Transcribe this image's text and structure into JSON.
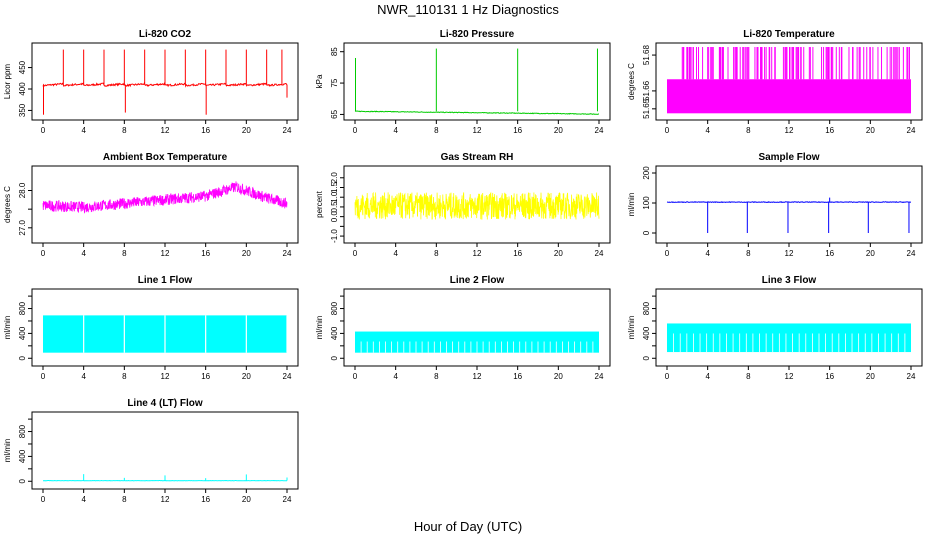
{
  "figure": {
    "title": "NWR_110131  1 Hz Diagnostics",
    "xlabel": "Hour of Day (UTC)"
  },
  "chart_data": [
    {
      "type": "line",
      "title": "Li-820 CO2",
      "ylabel": "Licor ppm",
      "color": "#ff0000",
      "xlim": [
        0,
        24
      ],
      "ylim": [
        337,
        498
      ],
      "yticks": [
        350,
        400,
        450
      ],
      "xticks": [
        0,
        4,
        8,
        12,
        16,
        20,
        24
      ],
      "baseline": 410,
      "noise": 4,
      "sawtooth": true,
      "spikes": [
        {
          "x": 2,
          "y": 492
        },
        {
          "x": 4,
          "y": 492
        },
        {
          "x": 6,
          "y": 492
        },
        {
          "x": 8,
          "y": 492
        },
        {
          "x": 10,
          "y": 492
        },
        {
          "x": 12,
          "y": 492
        },
        {
          "x": 14,
          "y": 492
        },
        {
          "x": 16,
          "y": 492
        },
        {
          "x": 18,
          "y": 492
        },
        {
          "x": 20,
          "y": 492
        },
        {
          "x": 22,
          "y": 492
        },
        {
          "x": 23.5,
          "y": 492
        }
      ],
      "dips": [
        {
          "x": 0.05,
          "y": 340
        },
        {
          "x": 8.1,
          "y": 345
        },
        {
          "x": 16.05,
          "y": 340
        },
        {
          "x": 24,
          "y": 380
        }
      ]
    },
    {
      "type": "line",
      "title": "Li-820 Pressure",
      "ylabel": "kPa",
      "color": "#00cc00",
      "xlim": [
        0,
        24
      ],
      "ylim": [
        64.5,
        86.5
      ],
      "yticks": [
        65,
        75,
        85
      ],
      "xticks": [
        0,
        4,
        8,
        12,
        16,
        20,
        24
      ],
      "baseline": 66,
      "noise": 0.2,
      "drift": -0.9,
      "spikes": [
        {
          "x": 0.05,
          "y": 83
        },
        {
          "x": 8,
          "y": 86
        },
        {
          "x": 16,
          "y": 86
        },
        {
          "x": 23.85,
          "y": 86
        }
      ]
    },
    {
      "type": "band",
      "title": "Li-820 Temperature",
      "ylabel": "degrees C",
      "color": "#ff00ff",
      "xlim": [
        0,
        24
      ],
      "ylim": [
        51.646,
        51.6845
      ],
      "yticks": [
        51.65,
        51.66,
        51.68
      ],
      "ytick_labels": [
        "51.65",
        "51.66",
        "51.68"
      ],
      "xticks": [
        0,
        4,
        8,
        12,
        16,
        20,
        24
      ],
      "band_low": 51.6475,
      "band_high": 51.6665,
      "spike_top": 51.6845,
      "spike_density": 0.25
    },
    {
      "type": "noise",
      "title": "Ambient Box Temperature",
      "ylabel": "degrees C",
      "color": "#ff00ff",
      "xlim": [
        0,
        24
      ],
      "ylim": [
        26.7,
        28.55
      ],
      "yticks": [
        27.0,
        27.5,
        28.0
      ],
      "ytick_labels": [
        "27.0",
        "",
        "28.0"
      ],
      "xticks": [
        0,
        4,
        8,
        12,
        16,
        20,
        24
      ],
      "trend": [
        [
          0,
          27.6
        ],
        [
          4,
          27.55
        ],
        [
          8,
          27.65
        ],
        [
          12,
          27.75
        ],
        [
          16,
          27.85
        ],
        [
          19,
          28.1
        ],
        [
          22,
          27.8
        ],
        [
          24,
          27.65
        ]
      ],
      "noise": 0.3
    },
    {
      "type": "noise",
      "title": "Gas Stream RH",
      "ylabel": "percent",
      "color": "#ffff00",
      "xlim": [
        0,
        24
      ],
      "ylim": [
        -1.15,
        2.4
      ],
      "yticks": [
        -1.0,
        -0.5,
        0.0,
        0.5,
        1.0,
        1.5,
        2.0
      ],
      "ytick_labels": [
        "-1.0",
        "0.0",
        "0.5",
        "1.0",
        "1.5",
        "2.0"
      ],
      "ytick_label_values": [
        -1.0,
        0.0,
        0.5,
        1.0,
        1.5,
        2.0
      ],
      "xticks": [
        0,
        4,
        8,
        12,
        16,
        20,
        24
      ],
      "trend": [
        [
          0,
          0.55
        ],
        [
          24,
          0.55
        ]
      ],
      "noise": 1.4
    },
    {
      "type": "line",
      "title": "Sample Flow",
      "ylabel": "ml/min",
      "color": "#0000ff",
      "xlim": [
        0,
        24
      ],
      "ylim": [
        -20,
        210
      ],
      "yticks": [
        0,
        100,
        200
      ],
      "xticks": [
        0,
        4,
        8,
        12,
        16,
        20,
        24
      ],
      "baseline": 103,
      "noise": 2,
      "dips": [
        {
          "x": 4,
          "y": 0
        },
        {
          "x": 7.9,
          "y": 0
        },
        {
          "x": 11.9,
          "y": 0
        },
        {
          "x": 15.9,
          "y": 0
        },
        {
          "x": 19.8,
          "y": 0
        },
        {
          "x": 23.8,
          "y": 0
        }
      ],
      "spikes": [
        {
          "x": 16,
          "y": 118
        }
      ]
    },
    {
      "type": "band",
      "title": "Line 1 Flow",
      "ylabel": "ml/min",
      "color": "#00ffff",
      "xlim": [
        0,
        24
      ],
      "ylim": [
        -60,
        1050
      ],
      "yticks": [
        0,
        200,
        400,
        600,
        800,
        1000
      ],
      "ytick_labels": [
        "0",
        "400",
        "800"
      ],
      "ytick_label_values": [
        0,
        400,
        800
      ],
      "xticks": [
        0,
        4,
        8,
        12,
        16,
        20,
        24
      ],
      "band_low": 90,
      "band_high": 690,
      "gaps": [
        4,
        8,
        12,
        16,
        20,
        24
      ]
    },
    {
      "type": "band",
      "title": "Line 2 Flow",
      "ylabel": "ml/min",
      "color": "#00ffff",
      "xlim": [
        0,
        24
      ],
      "ylim": [
        -60,
        1050
      ],
      "yticks": [
        0,
        200,
        400,
        600,
        800,
        1000
      ],
      "ytick_labels": [
        "0",
        "400",
        "800"
      ],
      "ytick_label_values": [
        0,
        400,
        800
      ],
      "xticks": [
        0,
        4,
        8,
        12,
        16,
        20,
        24
      ],
      "band_low": 90,
      "band_high": 430,
      "gap_every": 0.6
    },
    {
      "type": "band",
      "title": "Line 3 Flow",
      "ylabel": "ml/min",
      "color": "#00ffff",
      "xlim": [
        0,
        24
      ],
      "ylim": [
        -60,
        1050
      ],
      "yticks": [
        0,
        200,
        400,
        600,
        800,
        1000
      ],
      "ytick_labels": [
        "0",
        "400",
        "800"
      ],
      "ytick_label_values": [
        0,
        400,
        800
      ],
      "xticks": [
        0,
        4,
        8,
        12,
        16,
        20,
        24
      ],
      "band_low": 100,
      "band_high": 560,
      "gap_every": 0.65
    },
    {
      "type": "line",
      "title": "Line 4 (LT) Flow",
      "ylabel": "ml/min",
      "color": "#00ffff",
      "xlim": [
        0,
        24
      ],
      "ylim": [
        -60,
        1050
      ],
      "yticks": [
        0,
        200,
        400,
        600,
        800,
        1000
      ],
      "ytick_labels": [
        "0",
        "400",
        "800"
      ],
      "ytick_label_values": [
        0,
        400,
        800
      ],
      "xticks": [
        0,
        4,
        8,
        12,
        16,
        20,
        24
      ],
      "baseline": 10,
      "noise": 4,
      "spikes": [
        {
          "x": 4,
          "y": 115
        },
        {
          "x": 8,
          "y": 55
        },
        {
          "x": 12,
          "y": 95
        },
        {
          "x": 16,
          "y": 50
        },
        {
          "x": 20,
          "y": 110
        },
        {
          "x": 24,
          "y": 60
        }
      ]
    }
  ]
}
